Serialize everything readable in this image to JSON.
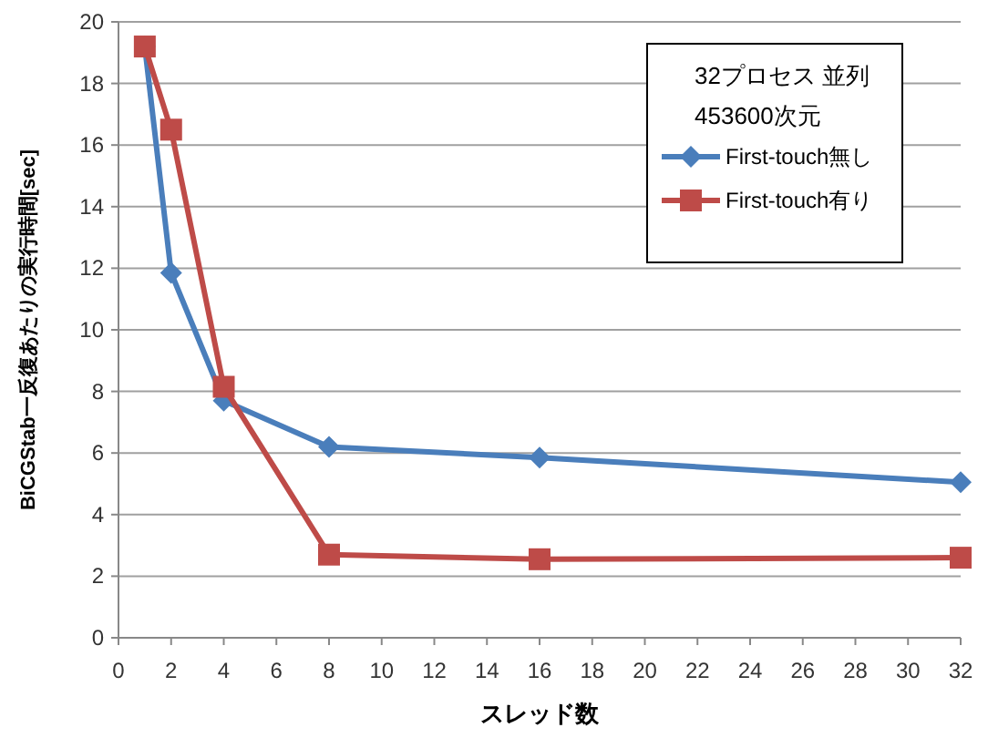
{
  "chart_data": {
    "type": "line",
    "xlabel": "スレッド数",
    "ylabel": "BiCGStab一反復あたりの実行時間[sec]",
    "legend_title": "32プロセス 並列\n453600次元",
    "x": [
      1,
      2,
      4,
      8,
      16,
      32
    ],
    "series": [
      {
        "name": "First-touch無し",
        "color": "#4a7ebb",
        "marker": "diamond",
        "values": [
          19.2,
          11.85,
          7.7,
          6.2,
          5.85,
          5.05
        ]
      },
      {
        "name": "First-touch有り",
        "color": "#be4b48",
        "marker": "square",
        "values": [
          19.2,
          16.5,
          8.15,
          2.7,
          2.55,
          2.6
        ]
      }
    ],
    "xlim": [
      0,
      32
    ],
    "xticks": [
      0,
      2,
      4,
      6,
      8,
      10,
      12,
      14,
      16,
      18,
      20,
      22,
      24,
      26,
      28,
      30,
      32
    ],
    "ylim": [
      0,
      20
    ],
    "yticks": [
      0,
      2,
      4,
      6,
      8,
      10,
      12,
      14,
      16,
      18,
      20
    ],
    "grid": "y",
    "legend": "top right",
    "line_style": "solid"
  }
}
